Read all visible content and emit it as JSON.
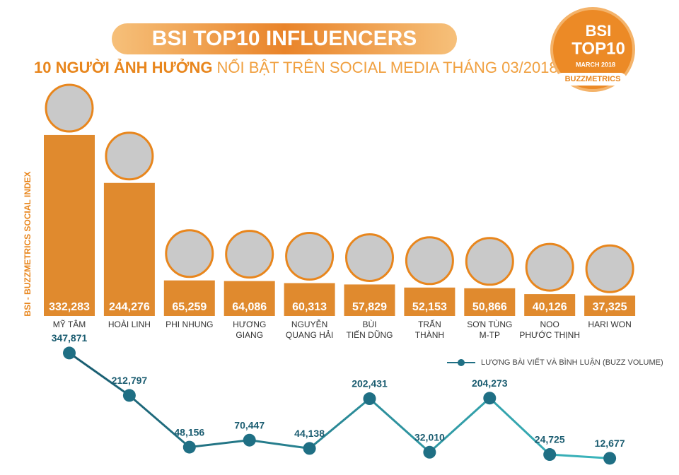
{
  "chart_data": {
    "type": "bar",
    "title": "BSI TOP10 INFLUENCERS",
    "subtitle": [
      "10 NGƯỜI ẢNH HƯỞNG",
      "NỔI BẬT TRÊN SOCIAL MEDIA THÁNG 03/2018"
    ],
    "badge": [
      "BSI",
      "TOP10",
      "MARCH 2018",
      "BUZZMETRICS"
    ],
    "y_label": "BSI - BUZZMETRICS SOCIAL INDEX",
    "categories": [
      [
        "MỸ TÂM"
      ],
      [
        "HOÀI LINH"
      ],
      [
        "PHI NHUNG"
      ],
      [
        "HƯƠNG",
        "GIANG"
      ],
      [
        "NGUYỄN",
        "QUANG HẢI"
      ],
      [
        "BÙI",
        "TIẾN DŨNG"
      ],
      [
        "TRẤN",
        "THÀNH"
      ],
      [
        "SƠN TÙNG",
        "M-TP"
      ],
      [
        "NOO",
        "PHƯỚC THỊNH"
      ],
      [
        "HARI WON"
      ]
    ],
    "values": [
      332283,
      244276,
      65259,
      64086,
      60313,
      57829,
      52153,
      50866,
      40126,
      37325
    ],
    "value_labels": [
      "332,283",
      "244,276",
      "65,259",
      "64,086",
      "60,313",
      "57,829",
      "52,153",
      "50,866",
      "40,126",
      "37,325"
    ],
    "color": "#e08a2e",
    "ylim": [
      0,
      340000
    ],
    "line": {
      "type": "line",
      "name": "LƯỢNG BÀI VIẾT VÀ BÌNH LUẬN (BUZZ VOLUME)",
      "color": "#1f6f84",
      "axis": "y2",
      "values": [
        347871,
        212797,
        48156,
        70447,
        44138,
        202431,
        32010,
        204273,
        24725,
        12677
      ],
      "value_labels": [
        "347,871",
        "212,797",
        "48,156",
        "70,447",
        "44,138",
        "202,431",
        "32,010",
        "204,273",
        "24,725",
        "12,677"
      ]
    },
    "y2lim": [
      0,
      360000
    ]
  }
}
